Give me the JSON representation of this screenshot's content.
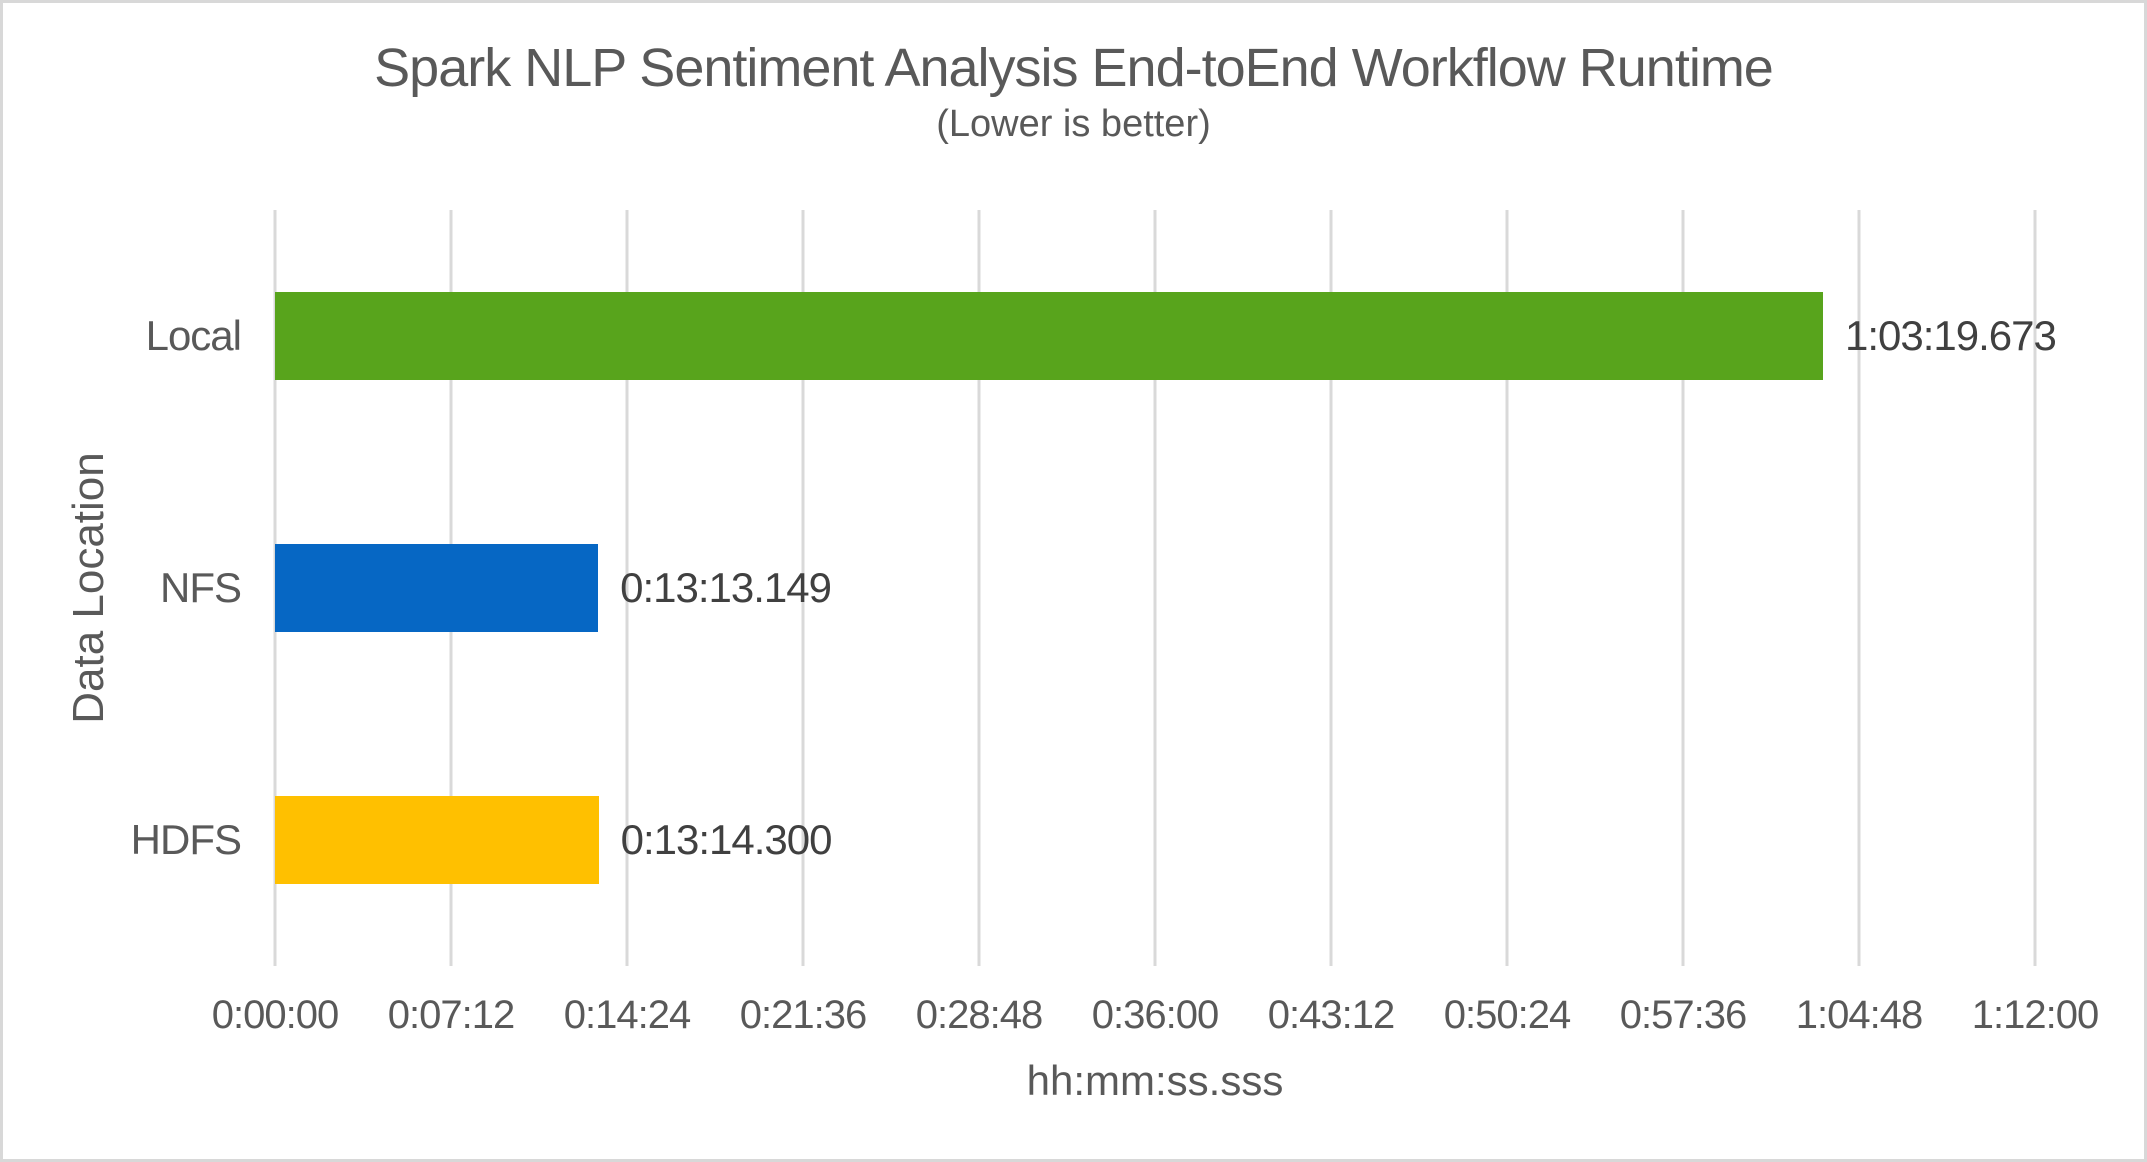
{
  "chart_data": {
    "type": "bar",
    "orientation": "horizontal",
    "title": "Spark NLP Sentiment Analysis End-toEnd Workflow Runtime",
    "subtitle": "(Lower is better)",
    "xlabel": "hh:mm:ss.sss",
    "ylabel": "Data Location",
    "categories": [
      "Local",
      "NFS",
      "HDFS"
    ],
    "values_seconds": [
      3799.673,
      793.149,
      794.3
    ],
    "value_labels": [
      "1:03:19.673",
      "0:13:13.149",
      "0:13:14.300"
    ],
    "bar_colors": [
      "#58A41C",
      "#0667C4",
      "#FFC000"
    ],
    "xlim_seconds": [
      0,
      4320
    ],
    "x_ticks": [
      "0:00:00",
      "0:07:12",
      "0:14:24",
      "0:21:36",
      "0:28:48",
      "0:36:00",
      "0:43:12",
      "0:50:24",
      "0:57:36",
      "1:04:48",
      "1:12:00"
    ],
    "x_tick_seconds": [
      0,
      432,
      864,
      1296,
      1728,
      2160,
      2592,
      3024,
      3456,
      3888,
      4320
    ],
    "grid": "vertical-gridlines",
    "legend": "none",
    "colors": {
      "grid": "#D9D9D9",
      "axis_text": "#595959",
      "title_text": "#595959",
      "data_label_text": "#404040",
      "border": "#D8D8D8",
      "background": "#FFFFFF"
    }
  }
}
